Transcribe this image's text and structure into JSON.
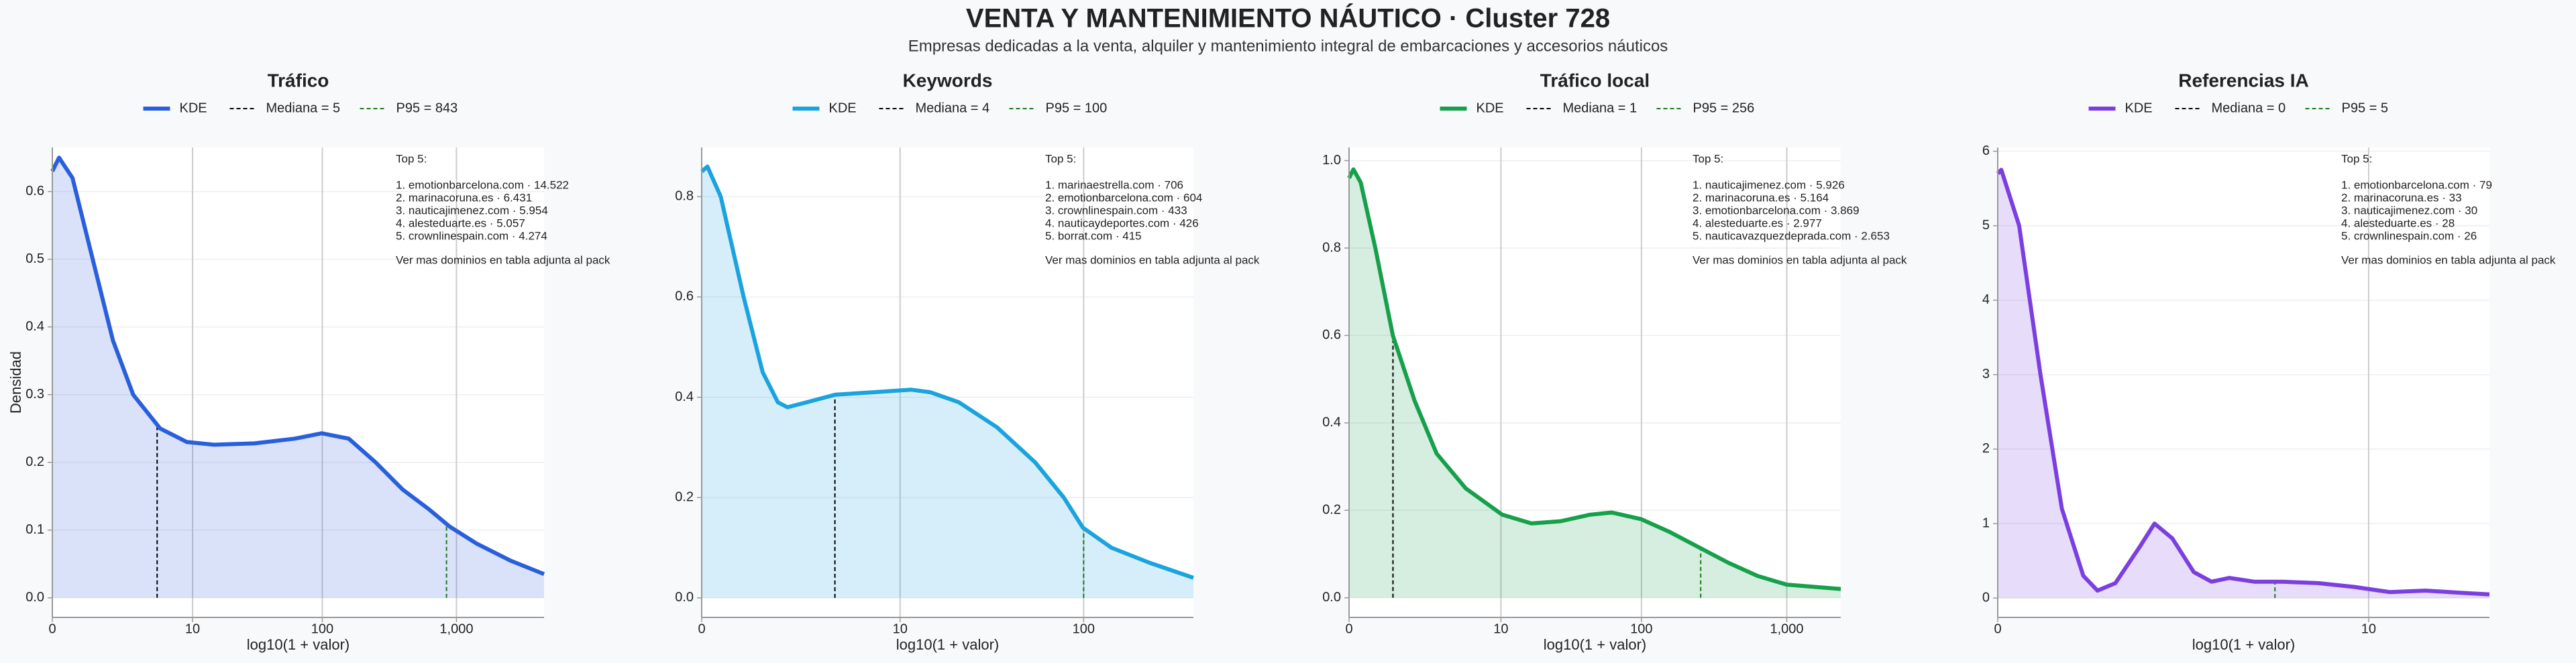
{
  "header": {
    "title": "VENTA Y MANTENIMIENTO NÁUTICO · Cluster 728",
    "subtitle": "Empresas dedicadas a la venta, alquiler y mantenimiento integral de embarcaciones y accesorios náuticos"
  },
  "chart_data": [
    {
      "type": "kde",
      "title": "Tráfico",
      "xlabel": "log10(1 + valor)",
      "ylabel": "Densidad",
      "xlim": [
        0,
        3.65
      ],
      "ylim": [
        -0.029,
        0.665
      ],
      "xticks": [
        0,
        {
          "value": 1.041,
          "label": "10"
        },
        {
          "value": 2.004,
          "label": "100"
        },
        {
          "value": 3.0,
          "label": "1,000"
        }
      ],
      "yticks": [
        {
          "value": 0,
          "label": "0.0"
        },
        {
          "value": 0.1,
          "label": "0.1"
        },
        {
          "value": 0.2,
          "label": "0.2"
        },
        {
          "value": 0.3,
          "label": "0.3"
        },
        {
          "value": 0.4,
          "label": "0.4"
        },
        {
          "value": 0.5,
          "label": "0.5"
        },
        {
          "value": 0.6,
          "label": "0.6"
        }
      ],
      "series": [
        {
          "name": "KDE",
          "color": "#2a5fdb",
          "x": [
            0,
            0.05,
            0.15,
            0.3,
            0.45,
            0.6,
            0.8,
            1.0,
            1.2,
            1.5,
            1.8,
            2.0,
            2.2,
            2.4,
            2.6,
            2.8,
            2.95,
            3.15,
            3.4,
            3.65
          ],
          "values": [
            0.63,
            0.65,
            0.62,
            0.5,
            0.38,
            0.3,
            0.25,
            0.23,
            0.226,
            0.228,
            0.235,
            0.243,
            0.235,
            0.2,
            0.16,
            0.13,
            0.105,
            0.08,
            0.055,
            0.035
          ]
        }
      ],
      "median": {
        "name": "Mediana = 5",
        "x": 0.778,
        "color": "#000000"
      },
      "p95": {
        "name": "P95 = 843",
        "x": 2.926,
        "color": "#1a7a1a"
      },
      "annotation": {
        "title": "Top 5:",
        "lines": [
          "1. emotionbarcelona.com · 14.522",
          "2. marinacoruna.es · 6.431",
          "3. nauticajimenez.com · 5.954",
          "4. alesteduarte.es · 5.057",
          "5. crownlinespain.com · 4.274"
        ],
        "note": "Ver mas dominios en tabla adjunta al pack"
      }
    },
    {
      "type": "kde",
      "title": "Keywords",
      "xlabel": "log10(1 + valor)",
      "xlim": [
        0,
        2.58
      ],
      "ylim": [
        -0.039,
        0.898
      ],
      "xticks": [
        0,
        {
          "value": 1.041,
          "label": "10"
        },
        {
          "value": 2.004,
          "label": "100"
        }
      ],
      "yticks": [
        {
          "value": 0,
          "label": "0.0"
        },
        {
          "value": 0.2,
          "label": "0.2"
        },
        {
          "value": 0.4,
          "label": "0.4"
        },
        {
          "value": 0.6,
          "label": "0.6"
        },
        {
          "value": 0.8,
          "label": "0.8"
        }
      ],
      "series": [
        {
          "name": "KDE",
          "color": "#1aa3df",
          "x": [
            0,
            0.03,
            0.1,
            0.22,
            0.32,
            0.4,
            0.45,
            0.55,
            0.7,
            0.9,
            1.1,
            1.2,
            1.35,
            1.55,
            1.75,
            1.9,
            2.0,
            2.15,
            2.35,
            2.58
          ],
          "values": [
            0.85,
            0.86,
            0.8,
            0.6,
            0.45,
            0.39,
            0.38,
            0.39,
            0.405,
            0.41,
            0.415,
            0.41,
            0.39,
            0.34,
            0.27,
            0.2,
            0.14,
            0.1,
            0.07,
            0.04
          ]
        }
      ],
      "median": {
        "name": "Mediana = 4",
        "x": 0.699,
        "color": "#000000"
      },
      "p95": {
        "name": "P95 = 100",
        "x": 2.004,
        "color": "#1a7a1a"
      },
      "annotation": {
        "title": "Top 5:",
        "lines": [
          "1. marinaestrella.com · 706",
          "2. emotionbarcelona.com · 604",
          "3. crownlinespain.com · 433",
          "4. nauticaydeportes.com · 426",
          "5. borrat.com · 415"
        ],
        "note": "Ver mas dominios en tabla adjunta al pack"
      }
    },
    {
      "type": "kde",
      "title": "Tráfico local",
      "xlabel": "log10(1 + valor)",
      "xlim": [
        0,
        3.37
      ],
      "ylim": [
        -0.045,
        1.03
      ],
      "xticks": [
        0,
        {
          "value": 1.041,
          "label": "10"
        },
        {
          "value": 2.004,
          "label": "100"
        },
        {
          "value": 3.0,
          "label": "1,000"
        }
      ],
      "yticks": [
        {
          "value": 0,
          "label": "0.0"
        },
        {
          "value": 0.2,
          "label": "0.2"
        },
        {
          "value": 0.4,
          "label": "0.4"
        },
        {
          "value": 0.6,
          "label": "0.6"
        },
        {
          "value": 0.8,
          "label": "0.8"
        },
        {
          "value": 1,
          "label": "1.0"
        }
      ],
      "series": [
        {
          "name": "KDE",
          "color": "#17a04b",
          "x": [
            0,
            0.03,
            0.08,
            0.18,
            0.3,
            0.45,
            0.6,
            0.8,
            1.05,
            1.25,
            1.45,
            1.65,
            1.8,
            2.0,
            2.2,
            2.4,
            2.6,
            2.8,
            3.0,
            3.37
          ],
          "values": [
            0.96,
            0.98,
            0.95,
            0.8,
            0.6,
            0.45,
            0.33,
            0.25,
            0.19,
            0.17,
            0.175,
            0.19,
            0.195,
            0.18,
            0.15,
            0.115,
            0.08,
            0.05,
            0.03,
            0.02
          ]
        }
      ],
      "median": {
        "name": "Mediana = 1",
        "x": 0.301,
        "color": "#000000"
      },
      "p95": {
        "name": "P95 = 256",
        "x": 2.41,
        "color": "#1a7a1a"
      },
      "annotation": {
        "title": "Top 5:",
        "lines": [
          "1. nauticajimenez.com · 5.926",
          "2. marinacoruna.es · 5.164",
          "3. emotionbarcelona.com · 3.869",
          "4. alesteduarte.es · 2.977",
          "5. nauticavazquezdeprada.com · 2.653"
        ],
        "note": "Ver mas dominios en tabla adjunta al pack"
      }
    },
    {
      "type": "kde",
      "title": "Referencias IA",
      "xlabel": "log10(1 + valor)",
      "xlim": [
        0,
        1.38
      ],
      "ylim": [
        -0.26,
        6.05
      ],
      "xticks": [
        0,
        {
          "value": 1.041,
          "label": "10"
        }
      ],
      "yticks": [
        0,
        1,
        2,
        3,
        4,
        5,
        6
      ],
      "series": [
        {
          "name": "KDE",
          "color": "#7b3fe0",
          "x": [
            0,
            0.01,
            0.06,
            0.12,
            0.18,
            0.24,
            0.28,
            0.33,
            0.4,
            0.44,
            0.49,
            0.55,
            0.6,
            0.65,
            0.72,
            0.8,
            0.9,
            1.0,
            1.1,
            1.2,
            1.3,
            1.38
          ],
          "values": [
            5.7,
            5.75,
            5.0,
            3.0,
            1.2,
            0.3,
            0.1,
            0.2,
            0.7,
            1.0,
            0.8,
            0.35,
            0.22,
            0.27,
            0.22,
            0.22,
            0.2,
            0.15,
            0.08,
            0.1,
            0.07,
            0.05
          ]
        }
      ],
      "median": {
        "name": "Mediana = 0",
        "x": 0,
        "color": "#000000"
      },
      "p95": {
        "name": "P95 = 5",
        "x": 0.778,
        "color": "#1a7a1a"
      },
      "annotation": {
        "title": "Top 5:",
        "lines": [
          "1. emotionbarcelona.com · 79",
          "2. marinacoruna.es · 33",
          "3. nauticajimenez.com · 30",
          "4. alesteduarte.es · 28",
          "5. crownlinespain.com · 26"
        ],
        "note": "Ver mas dominios en tabla adjunta al pack"
      }
    }
  ]
}
